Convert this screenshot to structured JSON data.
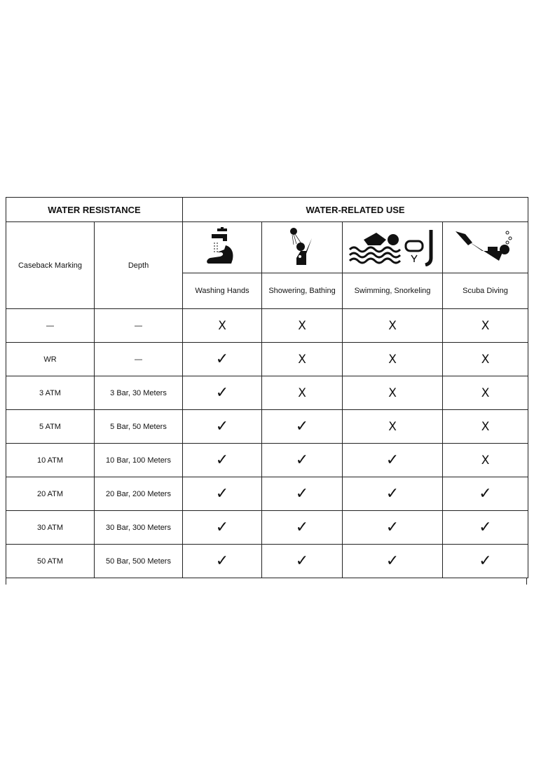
{
  "headers": {
    "water_resistance": "WATER RESISTANCE",
    "water_use": "WATER-RELATED USE",
    "caseback": "Caseback Marking",
    "depth": "Depth"
  },
  "activities": [
    {
      "label": "Washing Hands",
      "icon": "washing-hands-icon"
    },
    {
      "label": "Showering, Bathing",
      "icon": "shower-icon"
    },
    {
      "label": "Swimming, Snorkeling",
      "icon": "swimming-snorkel-icon"
    },
    {
      "label": "Scuba Diving",
      "icon": "scuba-diver-icon"
    }
  ],
  "symbols": {
    "yes": "✓",
    "no": "X"
  },
  "rows": [
    {
      "marking": "—",
      "depth": "—",
      "uses": [
        "X",
        "X",
        "X",
        "X"
      ]
    },
    {
      "marking": "WR",
      "depth": "—",
      "uses": [
        "✓",
        "X",
        "X",
        "X"
      ]
    },
    {
      "marking": "3 ATM",
      "depth": "3 Bar, 30 Meters",
      "uses": [
        "✓",
        "X",
        "X",
        "X"
      ]
    },
    {
      "marking": "5 ATM",
      "depth": "5 Bar, 50 Meters",
      "uses": [
        "✓",
        "✓",
        "X",
        "X"
      ]
    },
    {
      "marking": "10 ATM",
      "depth": "10 Bar, 100 Meters",
      "uses": [
        "✓",
        "✓",
        "✓",
        "X"
      ]
    },
    {
      "marking": "20 ATM",
      "depth": "20 Bar, 200 Meters",
      "uses": [
        "✓",
        "✓",
        "✓",
        "✓"
      ]
    },
    {
      "marking": "30 ATM",
      "depth": "30 Bar, 300 Meters",
      "uses": [
        "✓",
        "✓",
        "✓",
        "✓"
      ]
    },
    {
      "marking": "50 ATM",
      "depth": "50 Bar, 500 Meters",
      "uses": [
        "✓",
        "✓",
        "✓",
        "✓"
      ]
    }
  ]
}
